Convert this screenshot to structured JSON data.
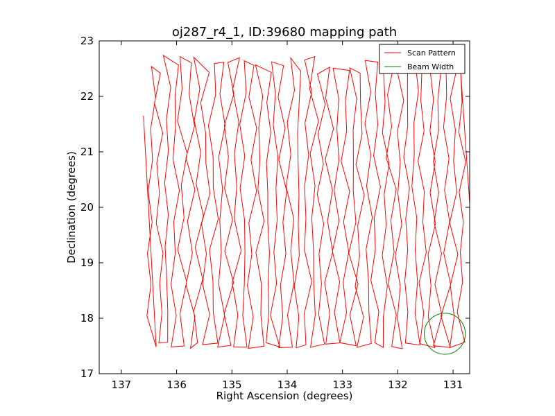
{
  "chart_data": {
    "type": "line",
    "title": "oj287_r4_1, ID:39680 mapping path",
    "xlabel": "Right Ascension (degrees)",
    "ylabel": "Declination (degrees)",
    "xlim": [
      137.4,
      130.7
    ],
    "ylim": [
      17,
      23
    ],
    "x_inverted": true,
    "xticks": [
      137,
      136,
      135,
      134,
      133,
      132,
      131
    ],
    "xtick_labels": [
      "137",
      "136",
      "135",
      "134",
      "133",
      "132",
      "131"
    ],
    "yticks": [
      17,
      18,
      19,
      20,
      21,
      22,
      23
    ],
    "ytick_labels": [
      "17",
      "18",
      "19",
      "20",
      "21",
      "22",
      "23"
    ],
    "grid": false,
    "legend_position": "top-right",
    "series": [
      {
        "name": "Scan Pattern",
        "color": "#ff0000",
        "style": "raster",
        "ra_start": 136.45,
        "ra_end": 130.85,
        "ra_step": 0.14,
        "dec_min": 17.45,
        "dec_max": 22.75
      },
      {
        "name": "Beam Width",
        "color": "#008000",
        "style": "circle",
        "center": [
          131.15,
          17.72
        ],
        "radius_dec": 0.37
      }
    ]
  }
}
